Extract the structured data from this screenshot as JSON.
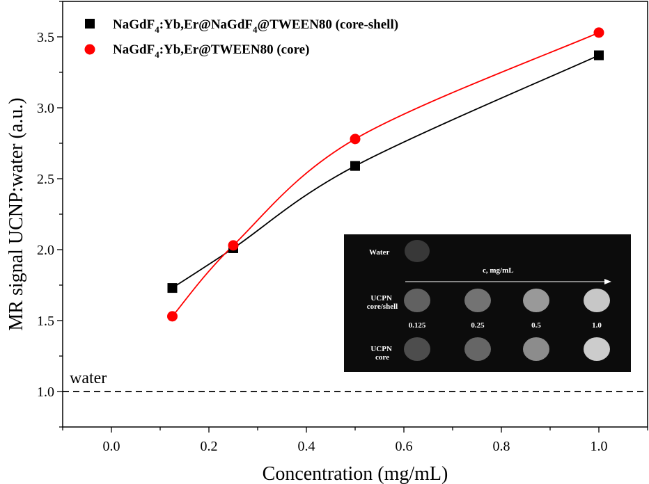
{
  "chart_data": {
    "type": "scatter",
    "xlabel": "Concentration (mg/mL)",
    "ylabel": "MR signal UCNP:water (a.u.)",
    "xlim": [
      -0.1,
      1.1
    ],
    "ylim": [
      0.75,
      3.75
    ],
    "x_ticks": [
      "0.0",
      "0.2",
      "0.4",
      "0.6",
      "0.8",
      "1.0"
    ],
    "y_ticks": [
      "1.0",
      "1.5",
      "2.0",
      "2.5",
      "3.0",
      "3.5"
    ],
    "reference_line": {
      "y": 1.0,
      "label": "water",
      "style": "dashed"
    },
    "series": [
      {
        "name_parts": [
          "NaGdF",
          "4",
          ":Yb,Er@NaGdF",
          "4",
          "@TWEEN80 (core-shell)"
        ],
        "marker": "square",
        "color": "#000000",
        "x": [
          0.125,
          0.25,
          0.5,
          1.0
        ],
        "y": [
          1.73,
          2.01,
          2.59,
          3.37
        ]
      },
      {
        "name_parts": [
          "NaGdF",
          "4",
          ":Yb,Er@TWEEN80 (core)"
        ],
        "marker": "circle",
        "color": "#ff0000",
        "x": [
          0.125,
          0.25,
          0.5,
          1.0
        ],
        "y": [
          1.53,
          2.03,
          2.78,
          3.53
        ]
      }
    ],
    "inset": {
      "water_label": "Water",
      "arrow_label": "c, mg/mL",
      "row1_label": [
        "UCPN",
        "core/shell"
      ],
      "row2_label": [
        "UCPN",
        "core"
      ],
      "concentrations": [
        "0.125",
        "0.25",
        "0.5",
        "1.0"
      ],
      "brightness_water": 0.22,
      "brightness_core_shell": [
        0.38,
        0.45,
        0.6,
        0.78
      ],
      "brightness_core": [
        0.3,
        0.4,
        0.55,
        0.8
      ]
    }
  }
}
